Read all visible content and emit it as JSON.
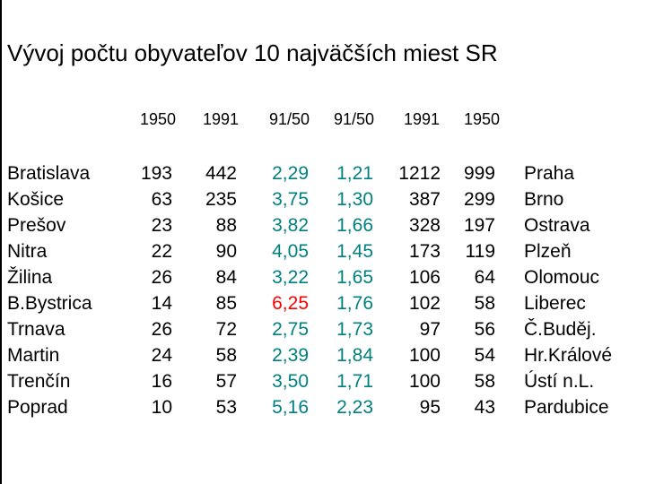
{
  "title": "Vývoj počtu obyvateľov 10 najväčších miest SR",
  "headers": {
    "sk_1950": "1950",
    "sk_1991": "1991",
    "sk_ratio": "91/50",
    "cz_ratio": "91/50",
    "cz_1991": "1991",
    "cz_1950": "1950"
  },
  "colors": {
    "ratio": "#008080",
    "highlight": "#ff0000",
    "text": "#000000"
  },
  "sk_cities": [
    "Bratislava",
    "Košice",
    "Prešov",
    "Nitra",
    "Žilina",
    "B.Bystrica",
    "Trnava",
    "Martin",
    "Trenčín",
    "Poprad"
  ],
  "sk_1950": [
    "193",
    "63",
    "23",
    "22",
    "26",
    "14",
    "26",
    "24",
    "16",
    "10"
  ],
  "sk_1991": [
    "442",
    "235",
    "88",
    "90",
    "84",
    "85",
    "72",
    "58",
    "57",
    "53"
  ],
  "sk_ratio": [
    "2,29",
    "3,75",
    "3,82",
    "4,05",
    "3,22",
    "6,25",
    "2,75",
    "2,39",
    "3,50",
    "5,16"
  ],
  "cz_ratio": [
    "1,21",
    "1,30",
    "1,66",
    "1,45",
    "1,65",
    "1,76",
    "1,73",
    "1,84",
    "1,71",
    "2,23"
  ],
  "cz_1991": [
    "1212",
    "387",
    "328",
    "173",
    "106",
    "102",
    "97",
    "100",
    "100",
    "95"
  ],
  "cz_1950": [
    "999",
    "299",
    "197",
    "119",
    "64",
    "58",
    "56",
    "54",
    "58",
    "43"
  ],
  "cz_cities": [
    "Praha",
    "Brno",
    "Ostrava",
    "Plzeň",
    "Olomouc",
    "Liberec",
    "Č.Buděj.",
    "Hr.Králové",
    "Ústí n.L.",
    "Pardubice"
  ]
}
